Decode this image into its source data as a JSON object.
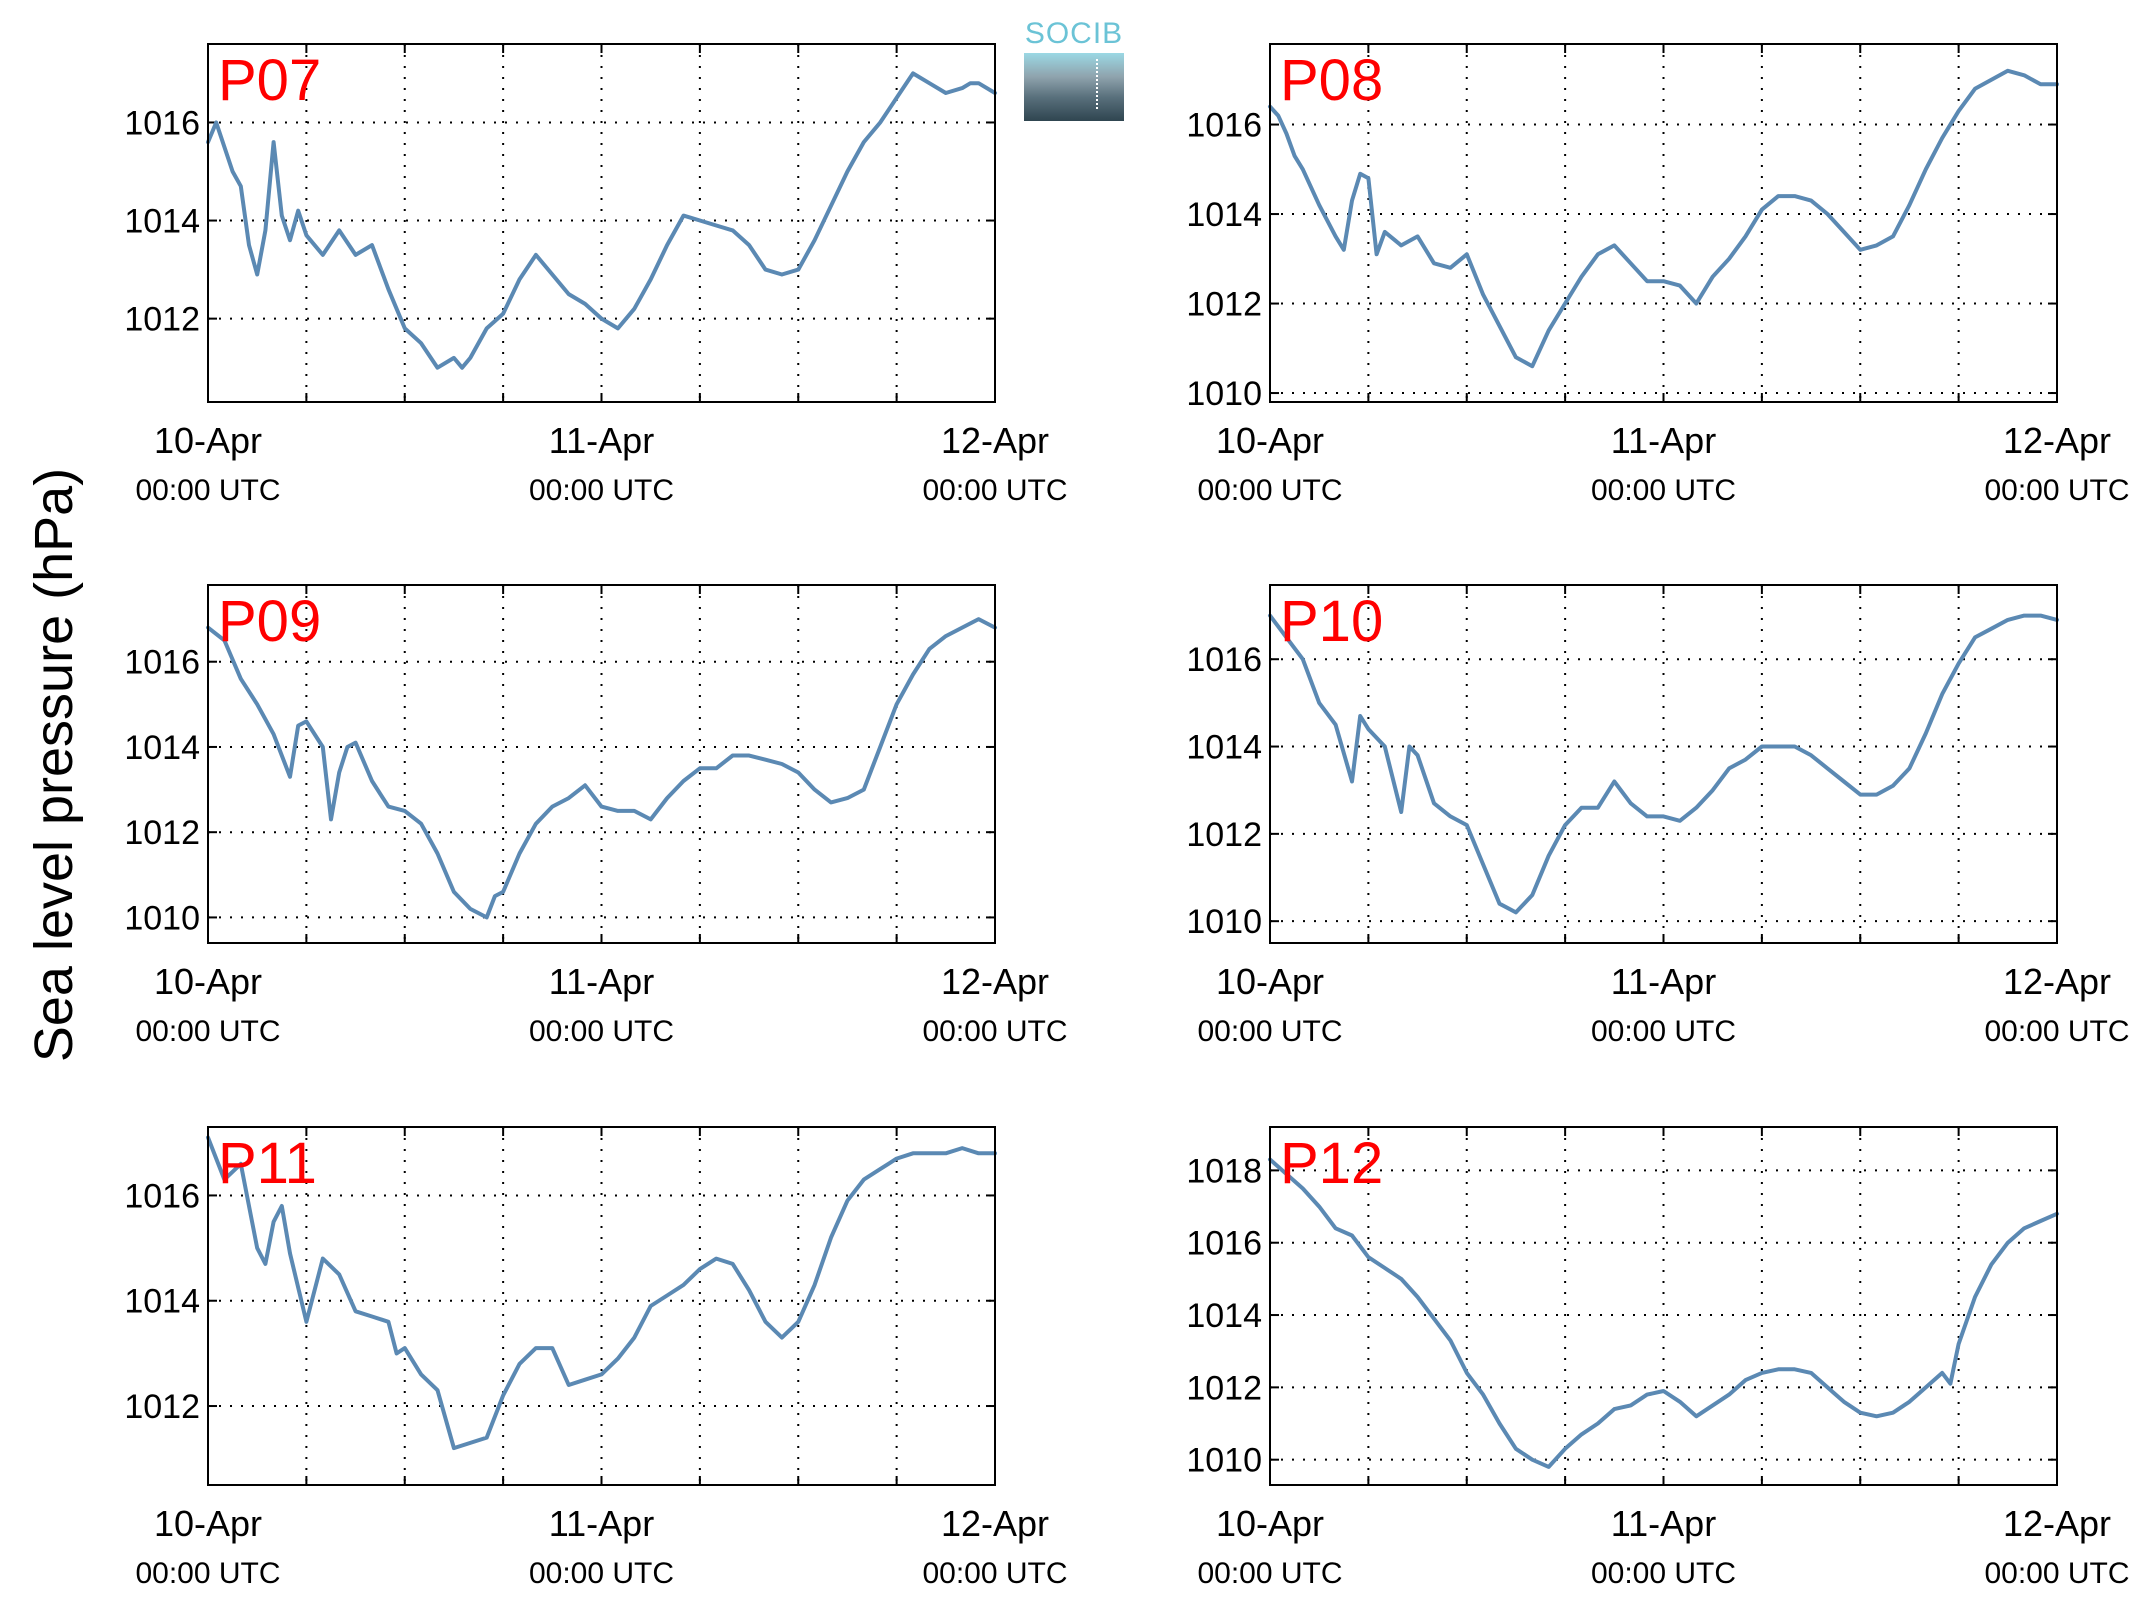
{
  "ylabel": "Sea level pressure (hPa)",
  "logo_text": "SOCIB",
  "colors": {
    "line": "#5b89b3",
    "panel_label": "#ff0000",
    "axis": "#000000"
  },
  "chart_data": [
    {
      "type": "line",
      "title": "P07",
      "xticks": [
        {
          "t": 0,
          "l1": "10-Apr",
          "l2": "00:00 UTC"
        },
        {
          "t": 24,
          "l1": "11-Apr",
          "l2": "00:00 UTC"
        },
        {
          "t": 48,
          "l1": "12-Apr",
          "l2": "00:00 UTC"
        }
      ],
      "xgrid": [
        6,
        12,
        18,
        24,
        30,
        36,
        42
      ],
      "xlim": [
        0,
        48
      ],
      "ylim": [
        1010.3,
        1017.6
      ],
      "yticks": [
        1012,
        1014,
        1016
      ],
      "x": [
        0,
        0.5,
        1,
        1.5,
        2,
        2.5,
        3,
        3.5,
        4,
        4.5,
        5,
        5.5,
        6,
        7,
        8,
        9,
        10,
        11,
        12,
        13,
        14,
        15,
        15.5,
        16,
        17,
        18,
        19,
        20,
        21,
        22,
        23,
        24,
        25,
        26,
        27,
        28,
        29,
        30,
        31,
        32,
        33,
        34,
        35,
        36,
        37,
        38,
        39,
        40,
        41,
        42,
        43,
        44,
        45,
        46,
        46.5,
        47,
        48
      ],
      "y": [
        1015.6,
        1016.0,
        1015.5,
        1015.0,
        1014.7,
        1013.5,
        1012.9,
        1013.8,
        1015.6,
        1014.1,
        1013.6,
        1014.2,
        1013.7,
        1013.3,
        1013.8,
        1013.3,
        1013.5,
        1012.6,
        1011.8,
        1011.5,
        1011.0,
        1011.2,
        1011.0,
        1011.2,
        1011.8,
        1012.1,
        1012.8,
        1013.3,
        1012.9,
        1012.5,
        1012.3,
        1012.0,
        1011.8,
        1012.2,
        1012.8,
        1013.5,
        1014.1,
        1014.0,
        1013.9,
        1013.8,
        1013.5,
        1013.0,
        1012.9,
        1013.0,
        1013.6,
        1014.3,
        1015.0,
        1015.6,
        1016.0,
        1016.5,
        1017.0,
        1016.8,
        1016.6,
        1016.7,
        1016.8,
        1016.8,
        1016.6
      ]
    },
    {
      "type": "line",
      "title": "P08",
      "xticks": [
        {
          "t": 0,
          "l1": "10-Apr",
          "l2": "00:00 UTC"
        },
        {
          "t": 24,
          "l1": "11-Apr",
          "l2": "00:00 UTC"
        },
        {
          "t": 48,
          "l1": "12-Apr",
          "l2": "00:00 UTC"
        }
      ],
      "xgrid": [
        6,
        12,
        18,
        24,
        30,
        36,
        42
      ],
      "xlim": [
        0,
        48
      ],
      "ylim": [
        1009.8,
        1017.8
      ],
      "yticks": [
        1010,
        1012,
        1014,
        1016
      ],
      "x": [
        0,
        0.5,
        1,
        1.5,
        2,
        3,
        4,
        4.5,
        5,
        5.5,
        6,
        6.5,
        7,
        8,
        9,
        10,
        11,
        12,
        13,
        14,
        15,
        16,
        17,
        18,
        19,
        20,
        21,
        22,
        23,
        24,
        25,
        26,
        27,
        28,
        29,
        30,
        31,
        32,
        33,
        34,
        35,
        36,
        37,
        38,
        39,
        40,
        41,
        42,
        43,
        44,
        45,
        46,
        47,
        48
      ],
      "y": [
        1016.4,
        1016.2,
        1015.8,
        1015.3,
        1015.0,
        1014.2,
        1013.5,
        1013.2,
        1014.3,
        1014.9,
        1014.8,
        1013.1,
        1013.6,
        1013.3,
        1013.5,
        1012.9,
        1012.8,
        1013.1,
        1012.2,
        1011.5,
        1010.8,
        1010.6,
        1011.4,
        1012.0,
        1012.6,
        1013.1,
        1013.3,
        1012.9,
        1012.5,
        1012.5,
        1012.4,
        1012.0,
        1012.6,
        1013.0,
        1013.5,
        1014.1,
        1014.4,
        1014.4,
        1014.3,
        1014.0,
        1013.6,
        1013.2,
        1013.3,
        1013.5,
        1014.2,
        1015.0,
        1015.7,
        1016.3,
        1016.8,
        1017.0,
        1017.2,
        1017.1,
        1016.9,
        1016.9
      ]
    },
    {
      "type": "line",
      "title": "P09",
      "xticks": [
        {
          "t": 0,
          "l1": "10-Apr",
          "l2": "00:00 UTC"
        },
        {
          "t": 24,
          "l1": "11-Apr",
          "l2": "00:00 UTC"
        },
        {
          "t": 48,
          "l1": "12-Apr",
          "l2": "00:00 UTC"
        }
      ],
      "xgrid": [
        6,
        12,
        18,
        24,
        30,
        36,
        42
      ],
      "xlim": [
        0,
        48
      ],
      "ylim": [
        1009.4,
        1017.8
      ],
      "yticks": [
        1010,
        1012,
        1014,
        1016
      ],
      "x": [
        0,
        1,
        2,
        3,
        4,
        5,
        5.5,
        6,
        7,
        7.5,
        8,
        8.5,
        9,
        10,
        11,
        12,
        13,
        14,
        15,
        16,
        17,
        17.5,
        18,
        19,
        20,
        21,
        22,
        23,
        24,
        25,
        26,
        27,
        28,
        29,
        30,
        31,
        32,
        33,
        34,
        35,
        36,
        37,
        38,
        39,
        40,
        41,
        42,
        43,
        44,
        45,
        46,
        47,
        48
      ],
      "y": [
        1016.8,
        1016.5,
        1015.6,
        1015.0,
        1014.3,
        1013.3,
        1014.5,
        1014.6,
        1014.0,
        1012.3,
        1013.4,
        1014.0,
        1014.1,
        1013.2,
        1012.6,
        1012.5,
        1012.2,
        1011.5,
        1010.6,
        1010.2,
        1010.0,
        1010.5,
        1010.6,
        1011.5,
        1012.2,
        1012.6,
        1012.8,
        1013.1,
        1012.6,
        1012.5,
        1012.5,
        1012.3,
        1012.8,
        1013.2,
        1013.5,
        1013.5,
        1013.8,
        1013.8,
        1013.7,
        1013.6,
        1013.4,
        1013.0,
        1012.7,
        1012.8,
        1013.0,
        1014.0,
        1015.0,
        1015.7,
        1016.3,
        1016.6,
        1016.8,
        1017.0,
        1016.8
      ]
    },
    {
      "type": "line",
      "title": "P10",
      "xticks": [
        {
          "t": 0,
          "l1": "10-Apr",
          "l2": "00:00 UTC"
        },
        {
          "t": 24,
          "l1": "11-Apr",
          "l2": "00:00 UTC"
        },
        {
          "t": 48,
          "l1": "12-Apr",
          "l2": "00:00 UTC"
        }
      ],
      "xgrid": [
        6,
        12,
        18,
        24,
        30,
        36,
        42
      ],
      "xlim": [
        0,
        48
      ],
      "ylim": [
        1009.5,
        1017.7
      ],
      "yticks": [
        1010,
        1012,
        1014,
        1016
      ],
      "x": [
        0,
        1,
        2,
        3,
        4,
        5,
        5.5,
        6,
        7,
        8,
        8.5,
        9,
        10,
        11,
        12,
        13,
        14,
        15,
        16,
        17,
        18,
        19,
        20,
        21,
        22,
        23,
        24,
        25,
        26,
        27,
        28,
        29,
        30,
        31,
        32,
        33,
        34,
        35,
        36,
        37,
        38,
        39,
        40,
        41,
        42,
        43,
        44,
        45,
        46,
        47,
        48
      ],
      "y": [
        1017.0,
        1016.5,
        1016.0,
        1015.0,
        1014.5,
        1013.2,
        1014.7,
        1014.4,
        1014.0,
        1012.5,
        1014.0,
        1013.8,
        1012.7,
        1012.4,
        1012.2,
        1011.3,
        1010.4,
        1010.2,
        1010.6,
        1011.5,
        1012.2,
        1012.6,
        1012.6,
        1013.2,
        1012.7,
        1012.4,
        1012.4,
        1012.3,
        1012.6,
        1013.0,
        1013.5,
        1013.7,
        1014.0,
        1014.0,
        1014.0,
        1013.8,
        1013.5,
        1013.2,
        1012.9,
        1012.9,
        1013.1,
        1013.5,
        1014.3,
        1015.2,
        1015.9,
        1016.5,
        1016.7,
        1016.9,
        1017.0,
        1017.0,
        1016.9
      ]
    },
    {
      "type": "line",
      "title": "P11",
      "xticks": [
        {
          "t": 0,
          "l1": "10-Apr",
          "l2": "00:00 UTC"
        },
        {
          "t": 24,
          "l1": "11-Apr",
          "l2": "00:00 UTC"
        },
        {
          "t": 48,
          "l1": "12-Apr",
          "l2": "00:00 UTC"
        }
      ],
      "xgrid": [
        6,
        12,
        18,
        24,
        30,
        36,
        42
      ],
      "xlim": [
        0,
        48
      ],
      "ylim": [
        1010.5,
        1017.3
      ],
      "yticks": [
        1012,
        1014,
        1016
      ],
      "x": [
        0,
        1,
        2,
        3,
        3.5,
        4,
        4.5,
        5,
        6,
        7,
        8,
        9,
        10,
        11,
        11.5,
        12,
        13,
        14,
        15,
        16,
        17,
        18,
        19,
        20,
        21,
        22,
        23,
        24,
        25,
        26,
        27,
        28,
        29,
        30,
        31,
        32,
        33,
        34,
        35,
        36,
        37,
        38,
        39,
        40,
        41,
        42,
        43,
        44,
        45,
        46,
        47,
        48
      ],
      "y": [
        1017.1,
        1016.3,
        1016.6,
        1015.0,
        1014.7,
        1015.5,
        1015.8,
        1014.9,
        1013.6,
        1014.8,
        1014.5,
        1013.8,
        1013.7,
        1013.6,
        1013.0,
        1013.1,
        1012.6,
        1012.3,
        1011.2,
        1011.3,
        1011.4,
        1012.2,
        1012.8,
        1013.1,
        1013.1,
        1012.4,
        1012.5,
        1012.6,
        1012.9,
        1013.3,
        1013.9,
        1014.1,
        1014.3,
        1014.6,
        1014.8,
        1014.7,
        1014.2,
        1013.6,
        1013.3,
        1013.6,
        1014.3,
        1015.2,
        1015.9,
        1016.3,
        1016.5,
        1016.7,
        1016.8,
        1016.8,
        1016.8,
        1016.9,
        1016.8,
        1016.8
      ]
    },
    {
      "type": "line",
      "title": "P12",
      "xticks": [
        {
          "t": 0,
          "l1": "10-Apr",
          "l2": "00:00 UTC"
        },
        {
          "t": 24,
          "l1": "11-Apr",
          "l2": "00:00 UTC"
        },
        {
          "t": 48,
          "l1": "12-Apr",
          "l2": "00:00 UTC"
        }
      ],
      "xgrid": [
        6,
        12,
        18,
        24,
        30,
        36,
        42
      ],
      "xlim": [
        0,
        48
      ],
      "ylim": [
        1009.3,
        1019.2
      ],
      "yticks": [
        1010,
        1012,
        1014,
        1016,
        1018
      ],
      "x": [
        0,
        1,
        2,
        3,
        4,
        5,
        6,
        7,
        8,
        9,
        10,
        11,
        12,
        13,
        14,
        15,
        16,
        17,
        18,
        19,
        20,
        21,
        22,
        23,
        24,
        25,
        26,
        27,
        28,
        29,
        30,
        31,
        32,
        33,
        34,
        35,
        36,
        37,
        38,
        39,
        40,
        41,
        41.5,
        42,
        43,
        44,
        45,
        46,
        47,
        48
      ],
      "y": [
        1018.3,
        1017.9,
        1017.5,
        1017.0,
        1016.4,
        1016.2,
        1015.6,
        1015.3,
        1015.0,
        1014.5,
        1013.9,
        1013.3,
        1012.4,
        1011.8,
        1011.0,
        1010.3,
        1010.0,
        1009.8,
        1010.3,
        1010.7,
        1011.0,
        1011.4,
        1011.5,
        1011.8,
        1011.9,
        1011.6,
        1011.2,
        1011.5,
        1011.8,
        1012.2,
        1012.4,
        1012.5,
        1012.5,
        1012.4,
        1012.0,
        1011.6,
        1011.3,
        1011.2,
        1011.3,
        1011.6,
        1012.0,
        1012.4,
        1012.1,
        1013.2,
        1014.5,
        1015.4,
        1016.0,
        1016.4,
        1016.6,
        1016.8
      ]
    }
  ]
}
